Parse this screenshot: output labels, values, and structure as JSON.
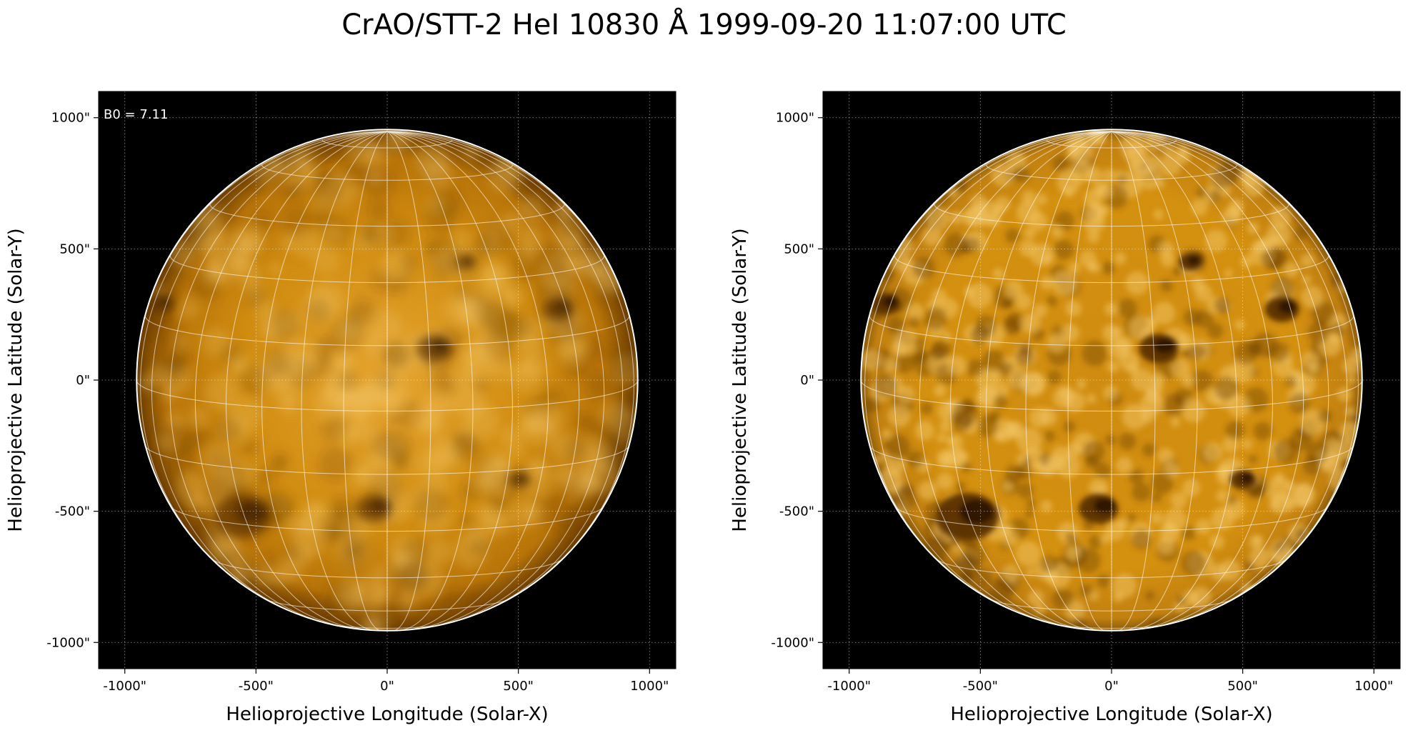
{
  "title": "CrAO/STT-2 HeI 10830 Å 1999-09-20 11:07:00 UTC",
  "colors": {
    "background": "#000000",
    "disk_mid": "#d08c10",
    "disk_bright": "#f0c262",
    "disk_dark": "#5a3000",
    "grid": "#ffffff"
  },
  "chart_data": [
    {
      "type": "heatmap",
      "name": "left-panel",
      "annotation": "B0 = 7.11",
      "xlabel": "Helioprojective Longitude (Solar-X)",
      "ylabel": "Helioprojective Latitude (Solar-Y)",
      "xlim": [
        -1100,
        1100
      ],
      "ylim": [
        -1100,
        1100
      ],
      "xticks": [
        -1000,
        -500,
        0,
        500,
        1000
      ],
      "yticks": [
        -1000,
        -500,
        0,
        500,
        1000
      ],
      "xtick_labels": [
        "-1000\"",
        "-500\"",
        "0\"",
        "500\"",
        "1000\""
      ],
      "ytick_labels": [
        "-1000\"",
        "-500\"",
        "0\"",
        "500\"",
        "1000\""
      ],
      "solar_radius": 955,
      "grid": "dotted",
      "grid_color": "#ffffff",
      "contrast": "normal",
      "features": [
        {
          "label": "active region dark patch",
          "x": 180,
          "y": 120,
          "r": 70
        },
        {
          "label": "southern dark patch",
          "x": -550,
          "y": -520,
          "r": 110
        },
        {
          "label": "south filament",
          "x": -50,
          "y": -490,
          "r": 70
        },
        {
          "label": "north-east patch",
          "x": 300,
          "y": 450,
          "r": 40
        },
        {
          "label": "west limb patch",
          "x": 650,
          "y": 270,
          "r": 60
        },
        {
          "label": "east limb patch",
          "x": -860,
          "y": 290,
          "r": 50
        },
        {
          "label": "south-west filament",
          "x": 500,
          "y": -380,
          "r": 45
        }
      ]
    },
    {
      "type": "heatmap",
      "name": "right-panel",
      "annotation": "",
      "xlabel": "Helioprojective Longitude (Solar-X)",
      "ylabel": "Helioprojective Latitude (Solar-Y)",
      "xlim": [
        -1100,
        1100
      ],
      "ylim": [
        -1100,
        1100
      ],
      "xticks": [
        -1000,
        -500,
        0,
        500,
        1000
      ],
      "yticks": [
        -1000,
        -500,
        0,
        500,
        1000
      ],
      "xtick_labels": [
        "-1000\"",
        "-500\"",
        "0\"",
        "500\"",
        "1000\""
      ],
      "ytick_labels": [
        "-1000\"",
        "-500\"",
        "0\"",
        "500\"",
        "1000\""
      ],
      "solar_radius": 955,
      "grid": "dotted",
      "grid_color": "#ffffff",
      "contrast": "enhanced",
      "features": [
        {
          "label": "active region dark patch",
          "x": 180,
          "y": 120,
          "r": 75
        },
        {
          "label": "southern dark patch",
          "x": -550,
          "y": -520,
          "r": 120
        },
        {
          "label": "south filament",
          "x": -50,
          "y": -490,
          "r": 75
        },
        {
          "label": "north-east patch",
          "x": 300,
          "y": 450,
          "r": 45
        },
        {
          "label": "west limb patch",
          "x": 650,
          "y": 270,
          "r": 65
        },
        {
          "label": "east limb patch",
          "x": -860,
          "y": 290,
          "r": 55
        },
        {
          "label": "south-west filament",
          "x": 500,
          "y": -380,
          "r": 50
        }
      ]
    }
  ]
}
